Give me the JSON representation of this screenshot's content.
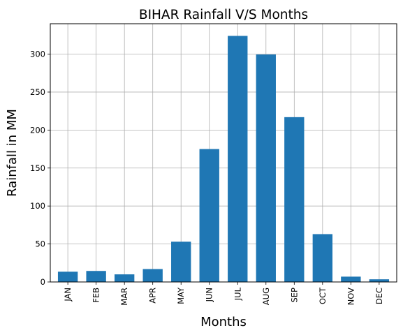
{
  "chart_data": {
    "type": "bar",
    "title": "BIHAR Rainfall V/S Months",
    "xlabel": "Months",
    "ylabel": "Rainfall in MM",
    "categories": [
      "JAN",
      "FEB",
      "MAR",
      "APR",
      "MAY",
      "JUN",
      "JUL",
      "AUG",
      "SEP",
      "OCT",
      "NOV",
      "DEC"
    ],
    "values": [
      13.5,
      14.5,
      10,
      17,
      53,
      175,
      324,
      299.5,
      217,
      63,
      7,
      3.5
    ],
    "ylim": [
      0,
      340
    ],
    "yticks": [
      0,
      50,
      100,
      150,
      200,
      250,
      300
    ],
    "grid": true,
    "bar_color": "#1f77b4",
    "grid_color": "#b0b0b0"
  }
}
